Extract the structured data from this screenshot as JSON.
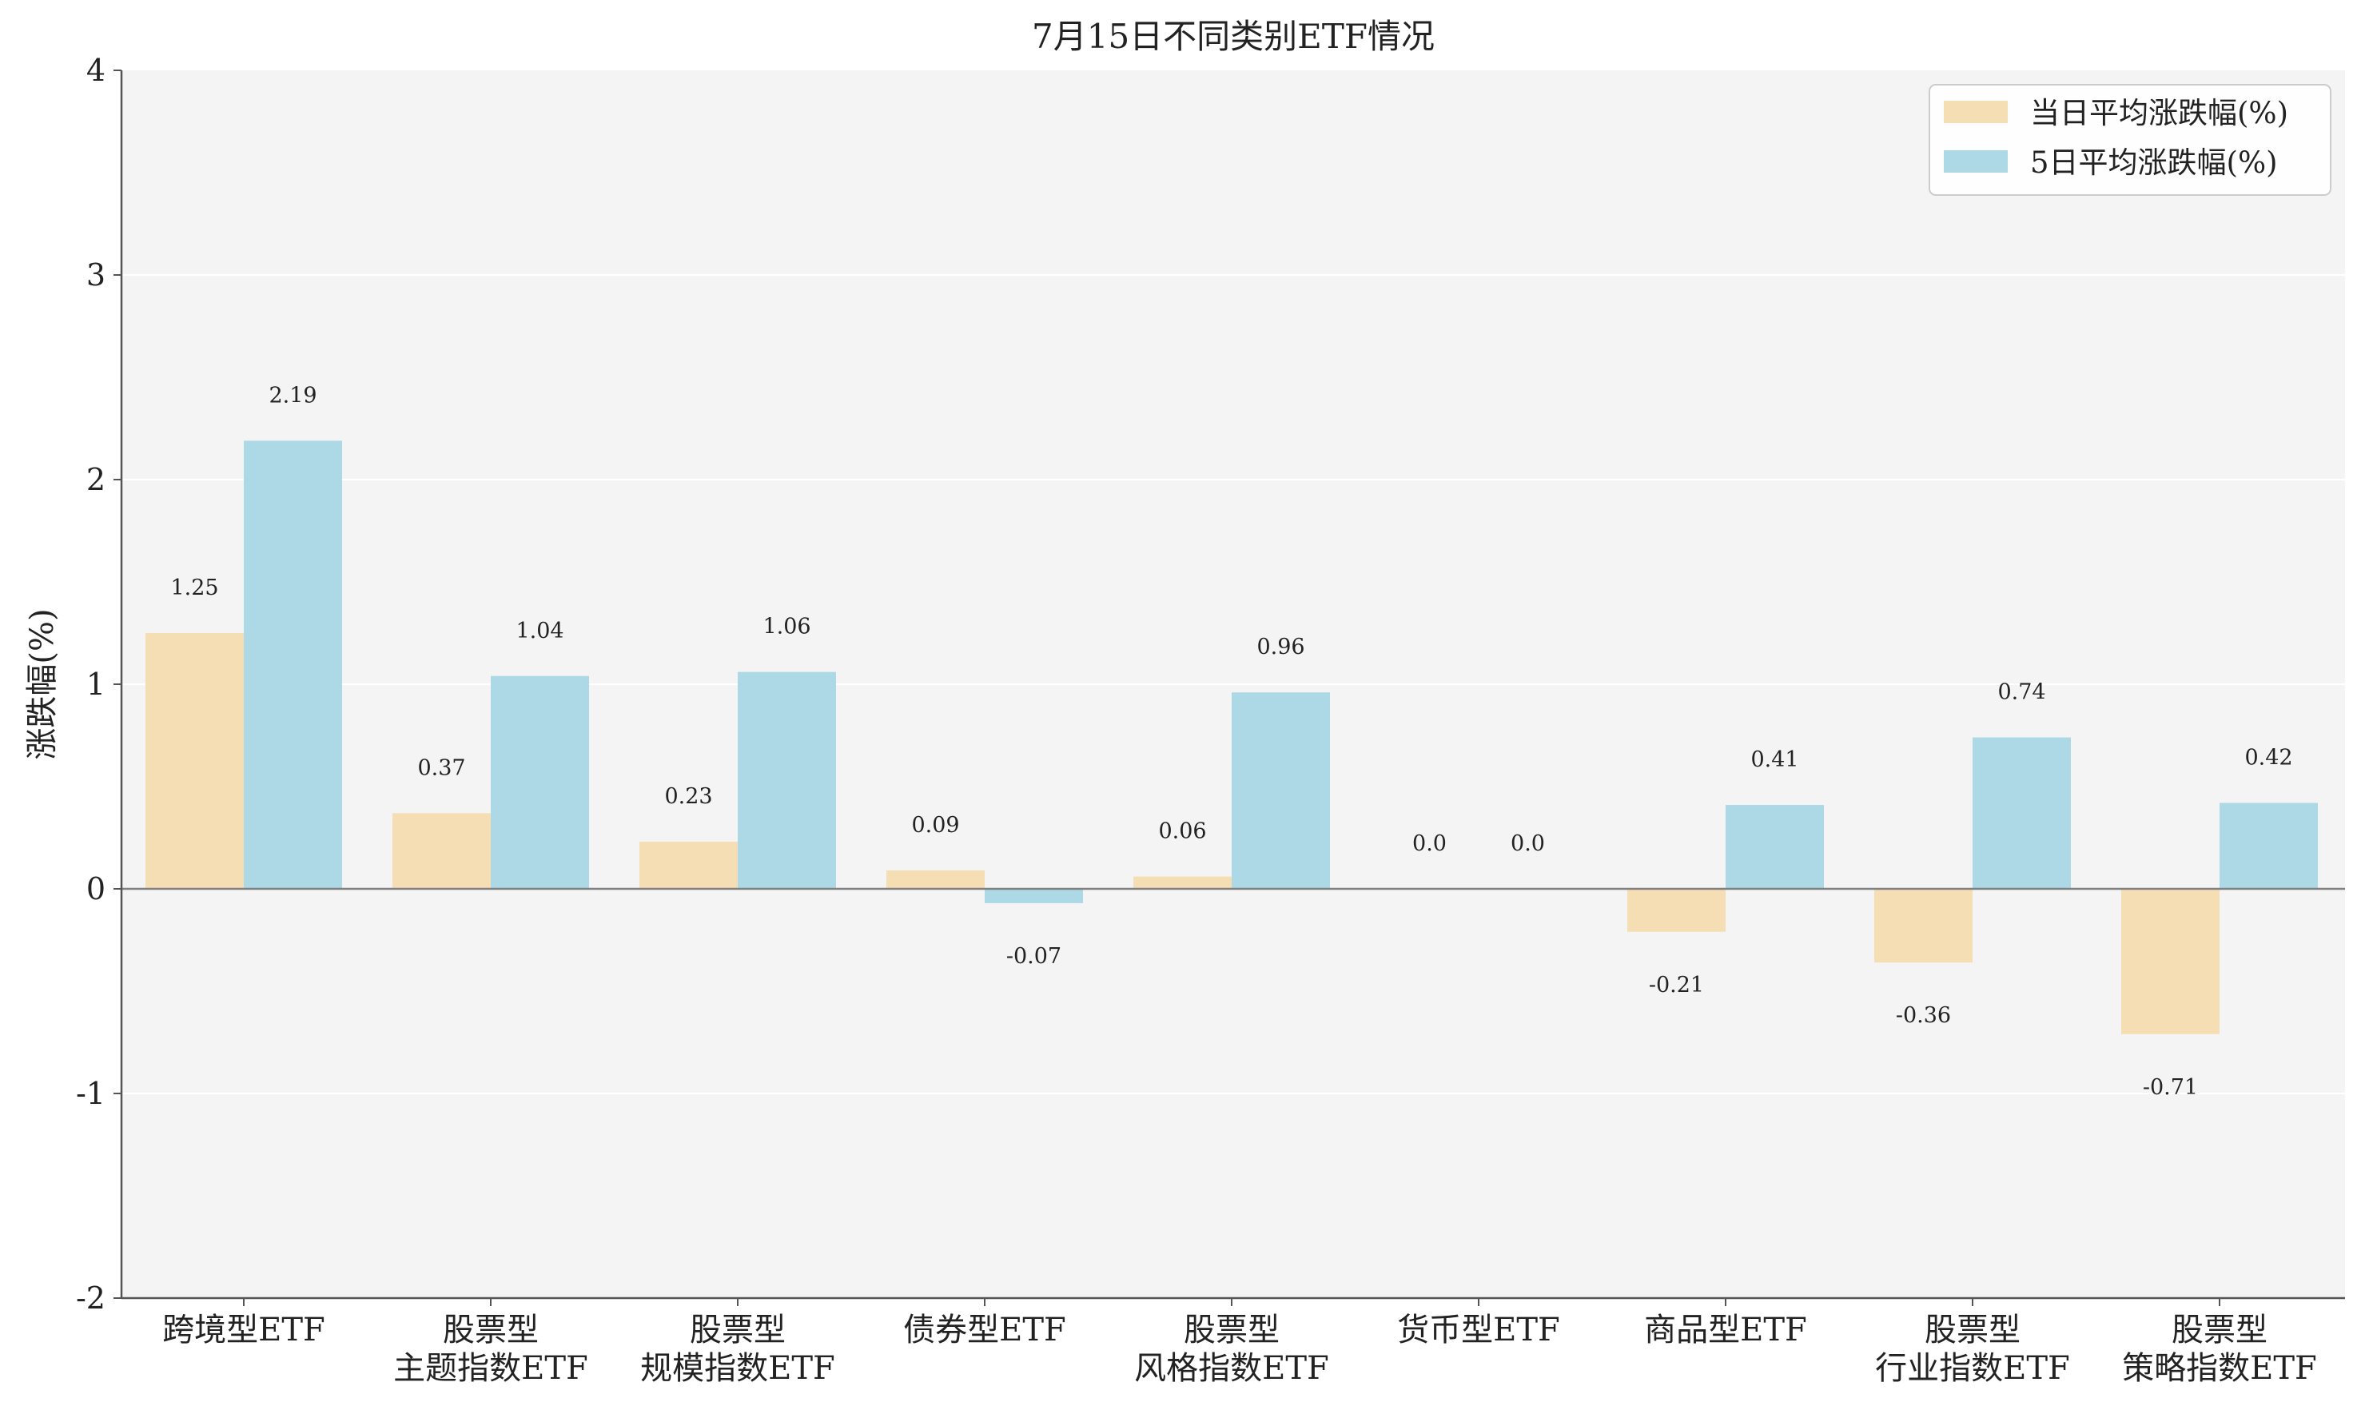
{
  "chart_data": {
    "type": "bar",
    "title": "7月15日不同类别ETF情况",
    "ylabel": "涨跌幅(%)",
    "xlabel": "",
    "ylim": [
      -2,
      4
    ],
    "yticks": [
      -2,
      -1,
      0,
      1,
      2,
      3,
      4
    ],
    "grid": true,
    "legend_position": "top-right",
    "categories": [
      [
        "跨境型ETF"
      ],
      [
        "股票型",
        "主题指数ETF"
      ],
      [
        "股票型",
        "规模指数ETF"
      ],
      [
        "债券型ETF"
      ],
      [
        "股票型",
        "风格指数ETF"
      ],
      [
        "货币型ETF"
      ],
      [
        "商品型ETF"
      ],
      [
        "股票型",
        "行业指数ETF"
      ],
      [
        "股票型",
        "策略指数ETF"
      ]
    ],
    "series": [
      {
        "name": "当日平均涨跌幅(%)",
        "color": "#f5deb3",
        "values": [
          1.25,
          0.37,
          0.23,
          0.09,
          0.06,
          0.0,
          -0.21,
          -0.36,
          -0.71
        ],
        "labels": [
          "1.25",
          "0.37",
          "0.23",
          "0.09",
          "0.06",
          "0.0",
          "-0.21",
          "-0.36",
          "-0.71"
        ]
      },
      {
        "name": "5日平均涨跌幅(%)",
        "color": "#add8e6",
        "values": [
          2.19,
          1.04,
          1.06,
          -0.07,
          0.96,
          0.0,
          0.41,
          0.74,
          0.42
        ],
        "labels": [
          "2.19",
          "1.04",
          "1.06",
          "-0.07",
          "0.96",
          "0.0",
          "0.41",
          "0.74",
          "0.42"
        ]
      }
    ],
    "colors": {
      "plot_background": "#f4f4f4",
      "grid": "#ffffff",
      "axis": "#555555",
      "zero_line": "#808080"
    }
  }
}
